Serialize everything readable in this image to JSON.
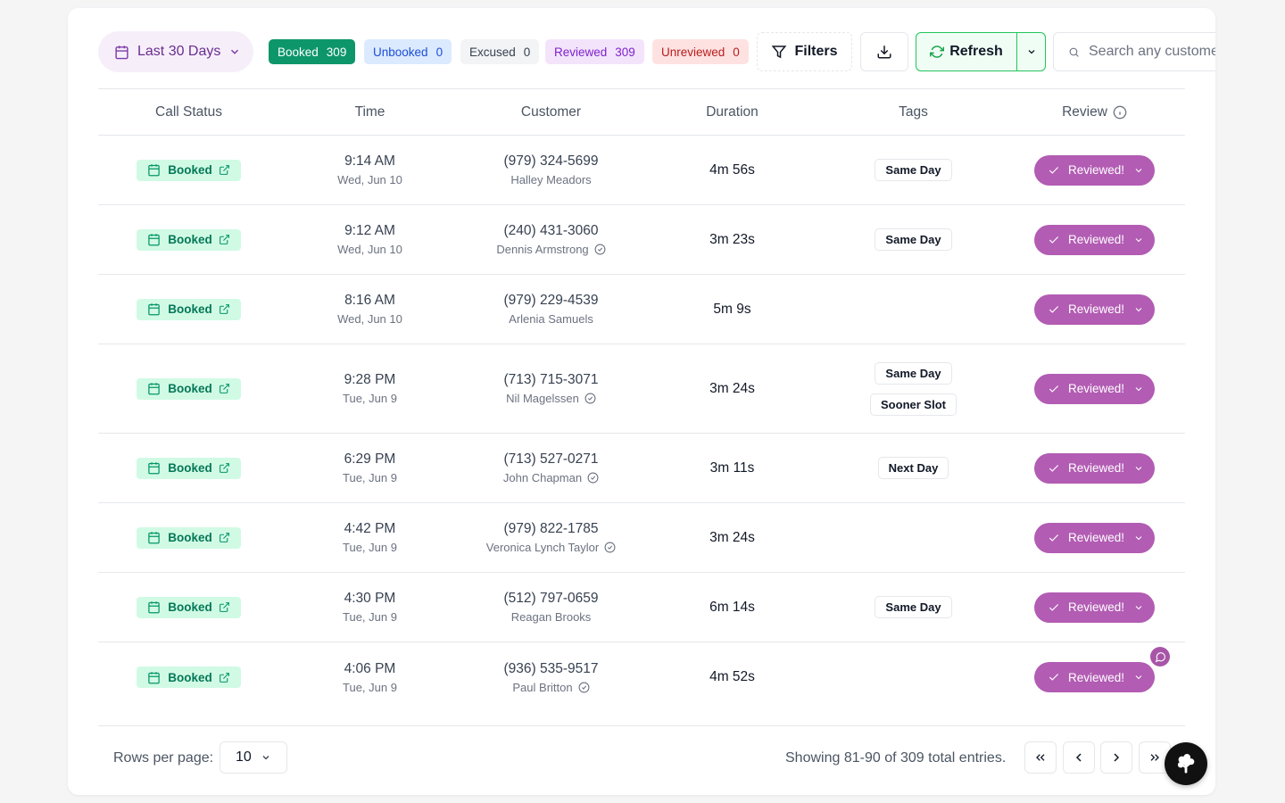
{
  "toolbar": {
    "date_range": "Last 30 Days",
    "chips": {
      "booked": {
        "label": "Booked",
        "count": "309"
      },
      "unbooked": {
        "label": "Unbooked",
        "count": "0"
      },
      "excused": {
        "label": "Excused",
        "count": "0"
      },
      "reviewed": {
        "label": "Reviewed",
        "count": "309"
      },
      "unreviewed": {
        "label": "Unreviewed",
        "count": "0"
      }
    },
    "filters_label": "Filters",
    "refresh_label": "Refresh",
    "search_placeholder": "Search any customer"
  },
  "table": {
    "headers": {
      "call_status": "Call Status",
      "time": "Time",
      "customer": "Customer",
      "duration": "Duration",
      "tags": "Tags",
      "review": "Review"
    },
    "rows": [
      {
        "status": "Booked",
        "time": "9:14 AM",
        "date": "Wed, Jun 10",
        "phone": "(979) 324-5699",
        "name": "Halley Meadors",
        "verified": false,
        "duration": "4m 56s",
        "tags": [
          "Same Day"
        ],
        "review": "Reviewed!",
        "has_comment": false
      },
      {
        "status": "Booked",
        "time": "9:12 AM",
        "date": "Wed, Jun 10",
        "phone": "(240) 431-3060",
        "name": "Dennis Armstrong",
        "verified": true,
        "duration": "3m 23s",
        "tags": [
          "Same Day"
        ],
        "review": "Reviewed!",
        "has_comment": false
      },
      {
        "status": "Booked",
        "time": "8:16 AM",
        "date": "Wed, Jun 10",
        "phone": "(979) 229-4539",
        "name": "Arlenia Samuels",
        "verified": false,
        "duration": "5m 9s",
        "tags": [],
        "review": "Reviewed!",
        "has_comment": false
      },
      {
        "status": "Booked",
        "time": "9:28 PM",
        "date": "Tue, Jun 9",
        "phone": "(713) 715-3071",
        "name": "Nil Magelssen",
        "verified": true,
        "duration": "3m 24s",
        "tags": [
          "Same Day",
          "Sooner Slot"
        ],
        "review": "Reviewed!",
        "has_comment": false
      },
      {
        "status": "Booked",
        "time": "6:29 PM",
        "date": "Tue, Jun 9",
        "phone": "(713) 527-0271",
        "name": "John Chapman",
        "verified": true,
        "duration": "3m 11s",
        "tags": [
          "Next Day"
        ],
        "review": "Reviewed!",
        "has_comment": false
      },
      {
        "status": "Booked",
        "time": "4:42 PM",
        "date": "Tue, Jun 9",
        "phone": "(979) 822-1785",
        "name": "Veronica Lynch Taylor",
        "verified": true,
        "duration": "3m 24s",
        "tags": [],
        "review": "Reviewed!",
        "has_comment": false
      },
      {
        "status": "Booked",
        "time": "4:30 PM",
        "date": "Tue, Jun 9",
        "phone": "(512) 797-0659",
        "name": "Reagan Brooks",
        "verified": false,
        "duration": "6m 14s",
        "tags": [
          "Same Day"
        ],
        "review": "Reviewed!",
        "has_comment": false
      },
      {
        "status": "Booked",
        "time": "4:06 PM",
        "date": "Tue, Jun 9",
        "phone": "(936) 535-9517",
        "name": "Paul Britton",
        "verified": true,
        "duration": "4m 52s",
        "tags": [],
        "review": "Reviewed!",
        "has_comment": true
      }
    ]
  },
  "footer": {
    "rows_per_page_label": "Rows per page:",
    "rows_per_page_value": "10",
    "entries_text": "Showing 81-90 of 309 total entries."
  },
  "colors": {
    "booked_green": "#0d9669",
    "review_purple": "#b25cb3",
    "accent_purple": "#6b2d8f"
  }
}
